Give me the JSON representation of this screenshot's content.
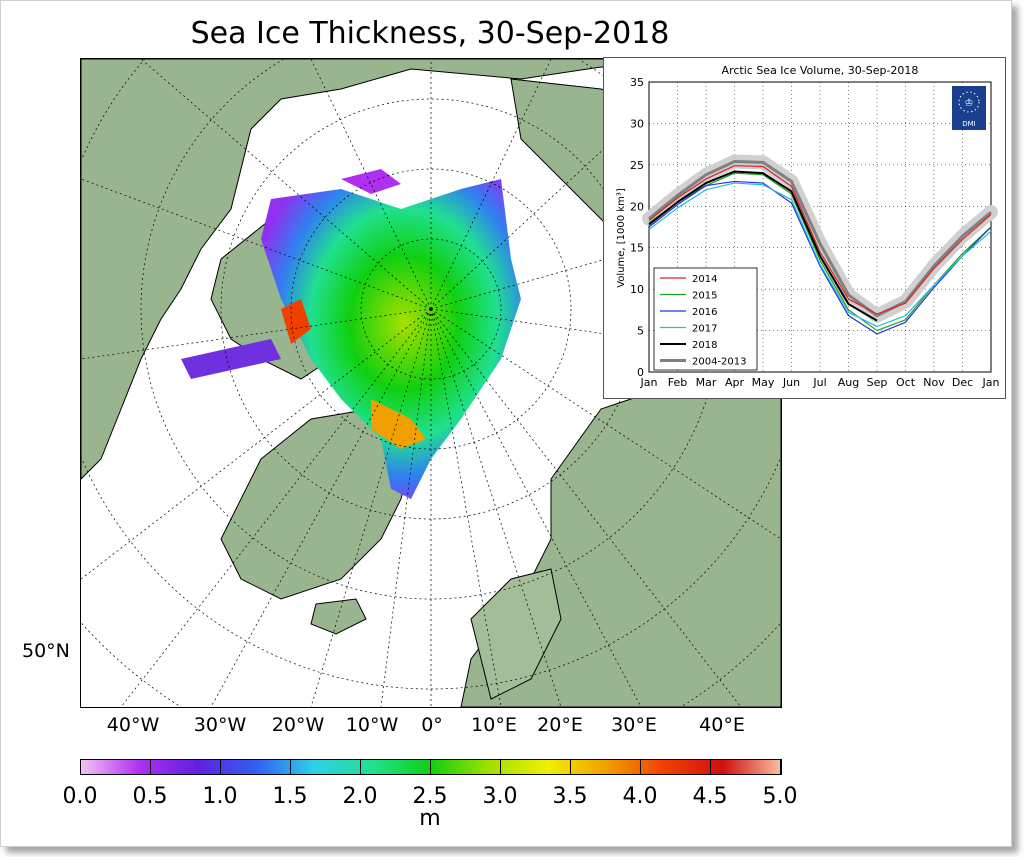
{
  "map": {
    "title": "Sea Ice Thickness, 30-Sep-2018",
    "lat_label": "50°N",
    "lon_labels": [
      "40°W",
      "30°W",
      "20°W",
      "10°W",
      "0°",
      "10°E",
      "20°E",
      "30°E",
      "40°E"
    ],
    "colorbar": {
      "ticks": [
        "0.0",
        "0.5",
        "1.0",
        "1.5",
        "2.0",
        "2.5",
        "3.0",
        "3.5",
        "4.0",
        "4.5",
        "5.0"
      ],
      "unit": "m",
      "colors": [
        "#f2c4f2",
        "#b030f0",
        "#6020e0",
        "#3060f0",
        "#30d0e8",
        "#20e090",
        "#10d010",
        "#a0e000",
        "#f0f000",
        "#f0a000",
        "#f04000",
        "#d01010",
        "#f8c0a0"
      ]
    },
    "colors": {
      "land": "#99b58f",
      "ocean": "#ffffff",
      "border": "#000000"
    }
  },
  "chart_data": {
    "type": "line",
    "title": "Arctic Sea Ice Volume, 30-Sep-2018",
    "ylabel": "Volume, [1000 km³]",
    "xlabel": "",
    "ylim": [
      0,
      35
    ],
    "yticks": [
      "0",
      "5",
      "10",
      "15",
      "20",
      "25",
      "30",
      "35"
    ],
    "categories": [
      "Jan",
      "Feb",
      "Mar",
      "Apr",
      "May",
      "Jun",
      "Jul",
      "Aug",
      "Sep",
      "Oct",
      "Nov",
      "Dec",
      "Jan"
    ],
    "legend_position": "lower-left",
    "logo_text": "DMI",
    "series": [
      {
        "name": "2014",
        "color": "#e02020",
        "values": [
          18.3,
          21.0,
          23.3,
          24.9,
          24.8,
          22.4,
          14.5,
          8.8,
          7.0,
          8.3,
          12.5,
          16.0,
          19.0
        ]
      },
      {
        "name": "2015",
        "color": "#20a020",
        "values": [
          18.0,
          20.5,
          22.5,
          24.0,
          23.8,
          21.5,
          13.5,
          7.5,
          5.0,
          6.3,
          10.5,
          14.3,
          17.5
        ]
      },
      {
        "name": "2016",
        "color": "#2030e0",
        "values": [
          17.5,
          20.2,
          22.5,
          23.0,
          22.8,
          20.4,
          12.8,
          6.8,
          4.6,
          6.0,
          10.2,
          14.0,
          17.5
        ]
      },
      {
        "name": "2017",
        "color": "#20c0d0",
        "values": [
          17.2,
          19.8,
          22.0,
          22.8,
          22.6,
          20.8,
          13.0,
          7.2,
          5.5,
          6.8,
          10.5,
          14.0,
          17.0
        ]
      },
      {
        "name": "2018",
        "color": "#000000",
        "values": [
          17.8,
          20.5,
          22.8,
          24.2,
          24.0,
          21.8,
          14.0,
          8.2,
          6.2,
          null,
          null,
          null,
          null
        ]
      },
      {
        "name": "2004-2013",
        "color": "#808080",
        "values": [
          18.5,
          21.3,
          23.8,
          25.4,
          25.3,
          23.0,
          15.5,
          9.3,
          6.8,
          8.5,
          12.8,
          16.4,
          19.3
        ]
      }
    ]
  }
}
